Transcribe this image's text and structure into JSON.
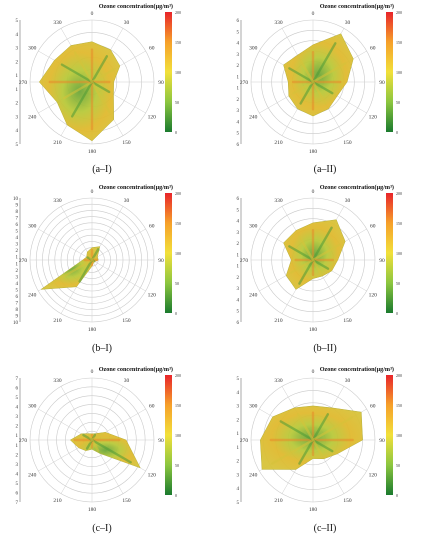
{
  "colorbar_title": "Ozone concentration(μg/m³)",
  "colorbar_colors": [
    "#1a7a2e",
    "#8cc63f",
    "#f2e03a",
    "#f6a02a",
    "#e8242a"
  ],
  "chart_data": [
    {
      "type": "polar",
      "panel": "(a–I)",
      "label": "(a–I)",
      "radial_ticks": [
        "5",
        "4",
        "3",
        "2",
        "1",
        "1",
        "2",
        "3",
        "4",
        "5"
      ],
      "colorbar_ticks": [
        "200",
        "150",
        "100",
        "50",
        "0"
      ],
      "angle_labels": [
        "0",
        "30",
        "60",
        "90",
        "120",
        "150",
        "180",
        "210",
        "240",
        "270",
        "300",
        "330"
      ],
      "polygon_radius_fraction": [
        0.65,
        0.6,
        0.52,
        0.35,
        0.4,
        0.7,
        0.95,
        0.8,
        0.65,
        0.85,
        0.7,
        0.68
      ]
    },
    {
      "type": "polar",
      "panel": "(a–II)",
      "label": "(a–II)",
      "radial_ticks": [
        "6",
        "5",
        "4",
        "3",
        "2",
        "1",
        "1",
        "2",
        "3",
        "4",
        "5",
        "6"
      ],
      "colorbar_ticks": [
        "200",
        "150",
        "100",
        "50",
        "0"
      ],
      "angle_labels": [
        "0",
        "30",
        "60",
        "90",
        "120",
        "150",
        "180",
        "210",
        "240",
        "270",
        "300",
        "330"
      ],
      "polygon_radius_fraction": [
        0.6,
        0.9,
        0.75,
        0.55,
        0.45,
        0.5,
        0.55,
        0.5,
        0.45,
        0.4,
        0.55,
        0.5
      ]
    },
    {
      "type": "polar",
      "panel": "(b–I)",
      "label": "(b–I)",
      "radial_ticks": [
        "10",
        "9",
        "8",
        "7",
        "6",
        "5",
        "4",
        "3",
        "2",
        "1",
        "1",
        "2",
        "3",
        "4",
        "5",
        "6",
        "7",
        "8",
        "9",
        "10"
      ],
      "colorbar_ticks": [
        "200",
        "150",
        "100",
        "50",
        "0"
      ],
      "angle_labels": [
        "0",
        "30",
        "60",
        "90",
        "120",
        "150",
        "180",
        "210",
        "240",
        "270",
        "300",
        "330"
      ],
      "polygon_radius_fraction": [
        0.2,
        0.25,
        0.1,
        0.1,
        0.05,
        0.05,
        0.1,
        0.5,
        0.95,
        0.15,
        0.1,
        0.15
      ]
    },
    {
      "type": "polar",
      "panel": "(b–II)",
      "label": "(b–II)",
      "radial_ticks": [
        "6",
        "5",
        "4",
        "3",
        "2",
        "1",
        "1",
        "2",
        "3",
        "4",
        "5",
        "6"
      ],
      "colorbar_ticks": [
        "200",
        "150",
        "100",
        "50",
        "0"
      ],
      "angle_labels": [
        "0",
        "30",
        "60",
        "90",
        "120",
        "150",
        "180",
        "210",
        "240",
        "270",
        "300",
        "330"
      ],
      "polygon_radius_fraction": [
        0.6,
        0.75,
        0.6,
        0.4,
        0.35,
        0.3,
        0.3,
        0.55,
        0.5,
        0.35,
        0.55,
        0.55
      ]
    },
    {
      "type": "polar",
      "panel": "(c–I)",
      "label": "(c–I)",
      "radial_ticks": [
        "7",
        "6",
        "5",
        "4",
        "3",
        "2",
        "1",
        "1",
        "2",
        "3",
        "4",
        "5",
        "6",
        "7"
      ],
      "colorbar_ticks": [
        "200",
        "150",
        "100",
        "50",
        "0"
      ],
      "angle_labels": [
        "0",
        "30",
        "60",
        "90",
        "120",
        "150",
        "180",
        "210",
        "240",
        "270",
        "300",
        "330"
      ],
      "polygon_radius_fraction": [
        0.1,
        0.12,
        0.25,
        0.55,
        0.9,
        0.25,
        0.15,
        0.2,
        0.25,
        0.35,
        0.2,
        0.12
      ]
    },
    {
      "type": "polar",
      "panel": "(c–II)",
      "label": "(c–II)",
      "radial_ticks": [
        "5",
        "4",
        "3",
        "2",
        "1",
        "1",
        "2",
        "3",
        "4",
        "5"
      ],
      "colorbar_ticks": [
        "200",
        "150",
        "100",
        "50",
        "0"
      ],
      "angle_labels": [
        "0",
        "30",
        "60",
        "90",
        "120",
        "150",
        "180",
        "210",
        "240",
        "270",
        "300",
        "330"
      ],
      "polygon_radius_fraction": [
        0.55,
        0.6,
        0.9,
        0.8,
        0.45,
        0.35,
        0.3,
        0.55,
        0.95,
        0.85,
        0.75,
        0.6
      ]
    }
  ]
}
